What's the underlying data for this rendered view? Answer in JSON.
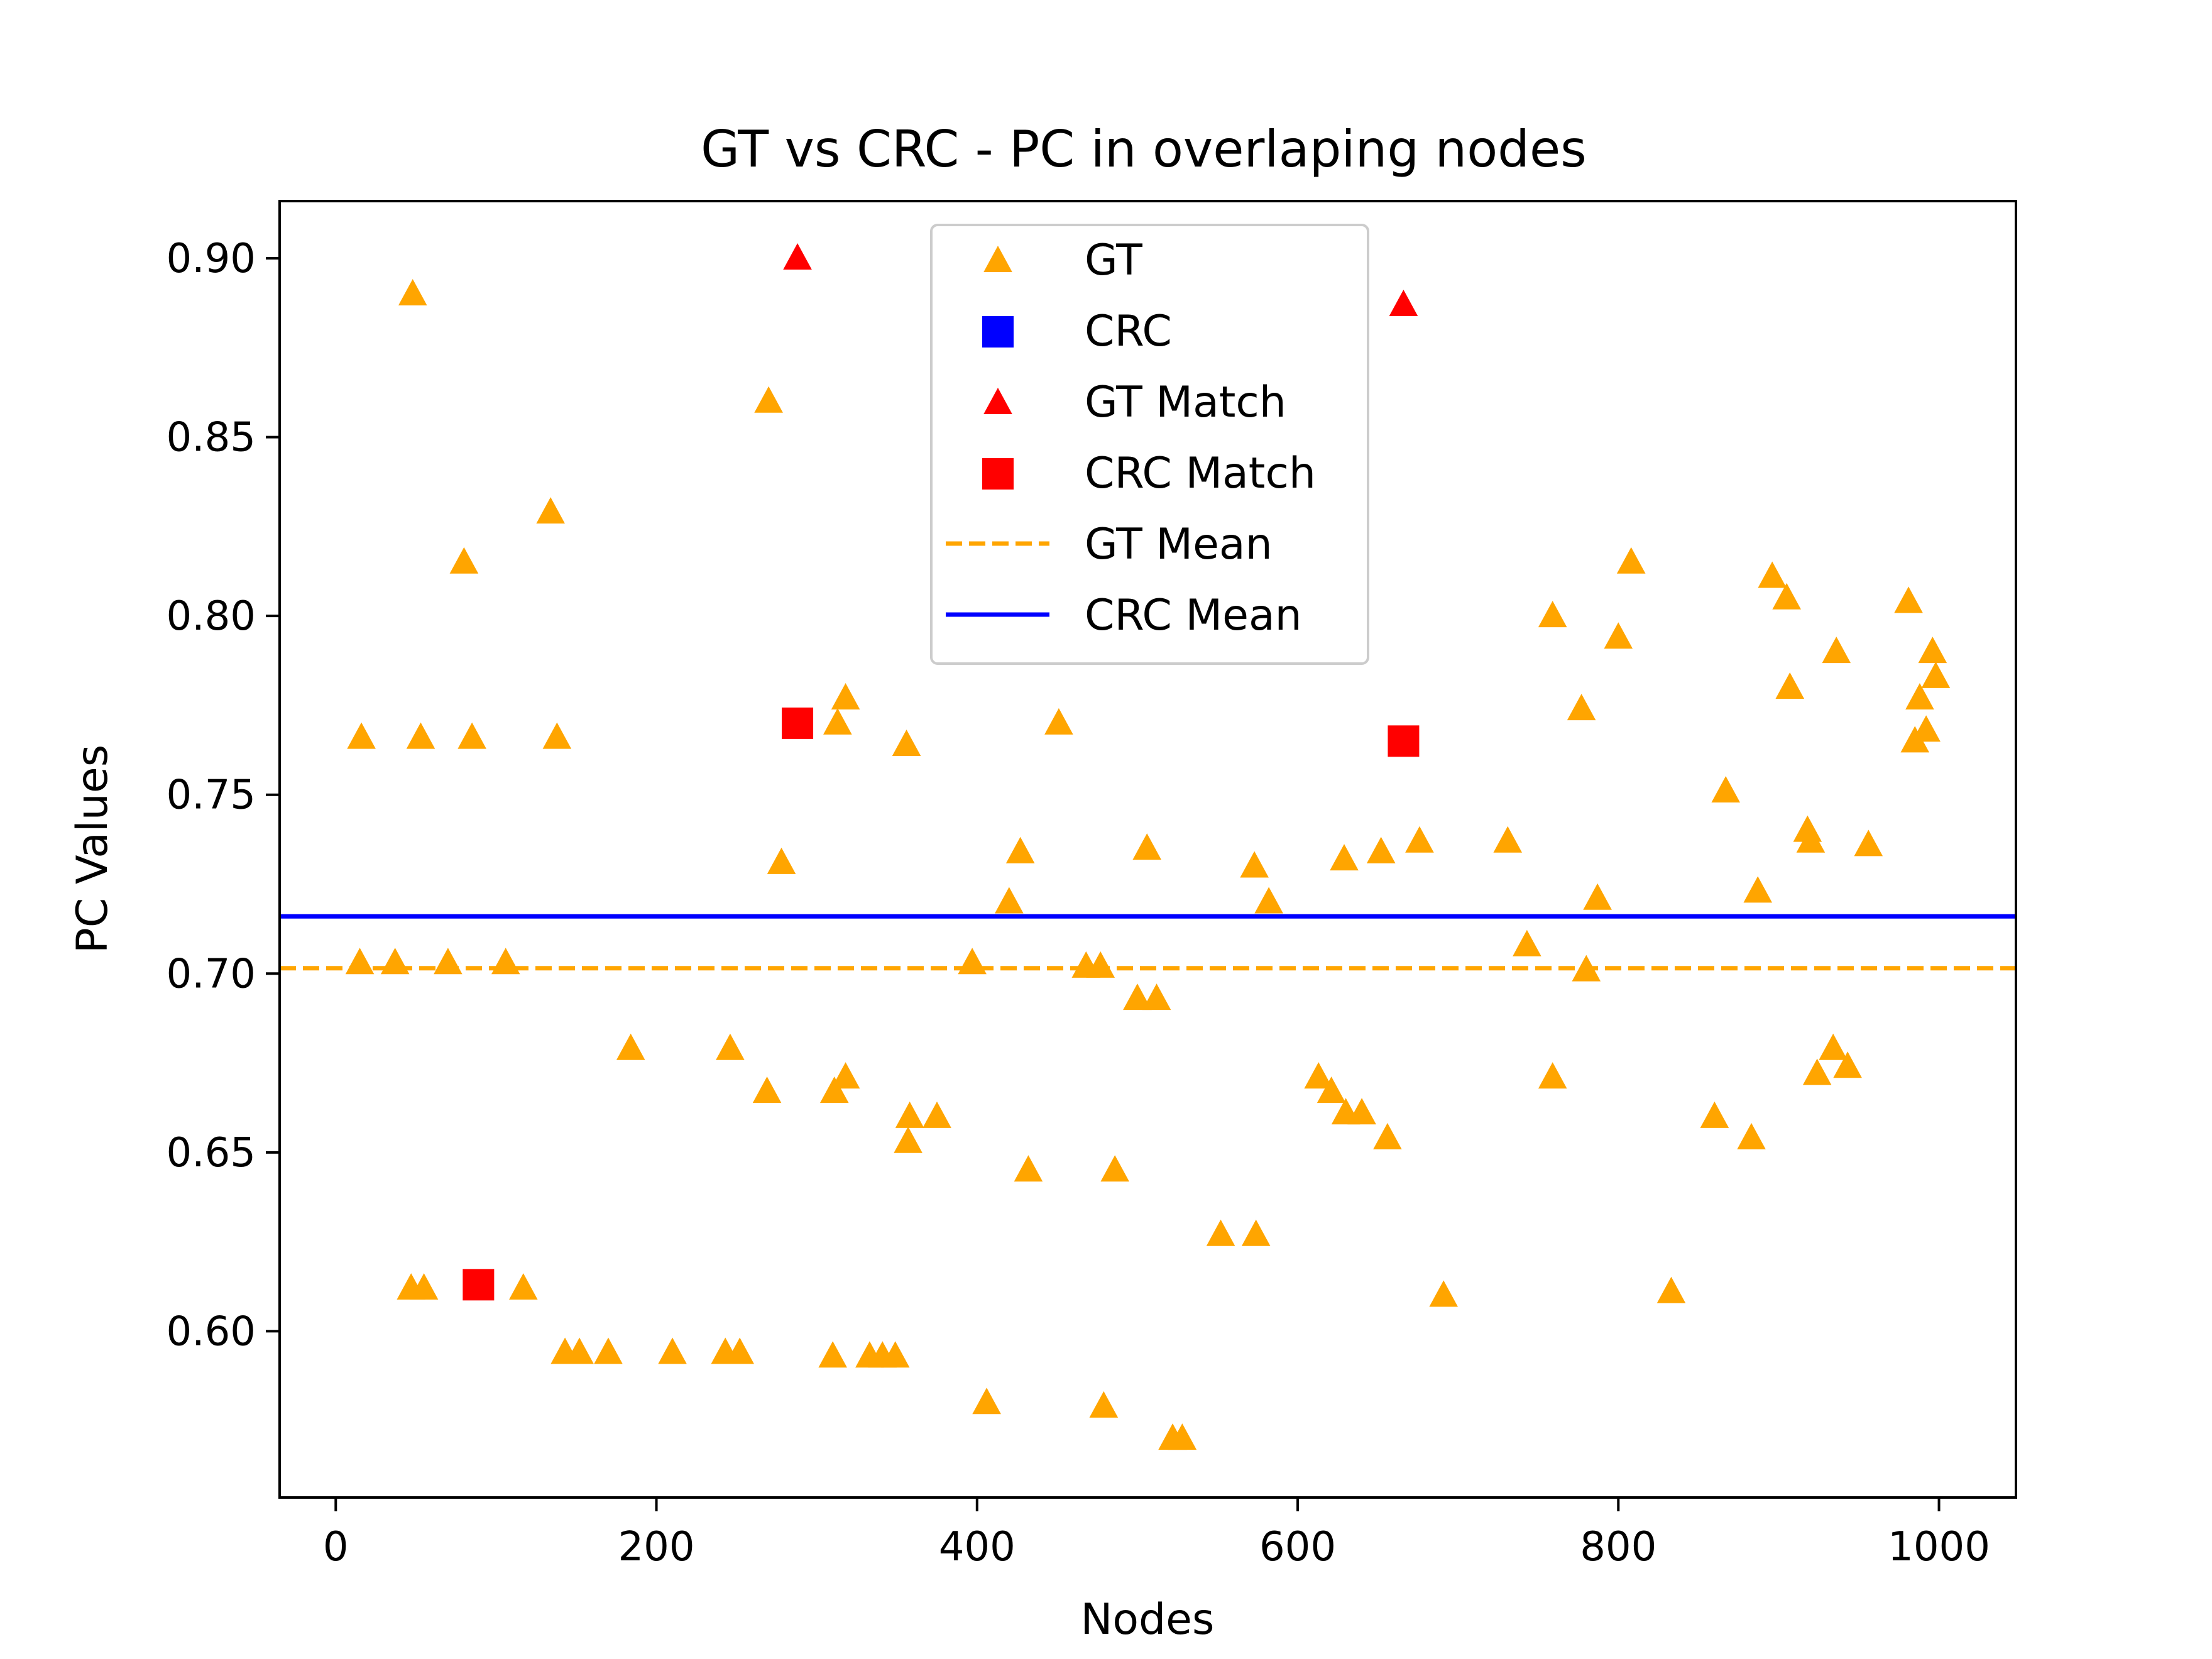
{
  "chart_data": {
    "type": "scatter",
    "title": "GT vs CRC - PC in overlaping nodes",
    "xlabel": "Nodes",
    "ylabel": "PC Values",
    "xlim": [
      -35,
      1048
    ],
    "ylim": [
      0.5535,
      0.916
    ],
    "x_ticks": [
      0,
      200,
      400,
      600,
      800,
      1000
    ],
    "x_tick_labels": [
      "0",
      "200",
      "400",
      "600",
      "800",
      "1000"
    ],
    "y_ticks": [
      0.6,
      0.65,
      0.7,
      0.75,
      0.8,
      0.85,
      0.9
    ],
    "y_tick_labels": [
      "0.60",
      "0.65",
      "0.70",
      "0.75",
      "0.80",
      "0.85",
      "0.90"
    ],
    "grid": false,
    "legend_position": "top-center",
    "series": [
      {
        "name": "GT",
        "marker": "triangle",
        "color": "#FFA500",
        "points": [
          [
            16,
            0.766
          ],
          [
            48,
            0.89
          ],
          [
            53,
            0.766
          ],
          [
            85,
            0.766
          ],
          [
            138,
            0.766
          ],
          [
            80,
            0.815
          ],
          [
            134,
            0.829
          ],
          [
            270,
            0.86
          ],
          [
            15,
            0.703
          ],
          [
            37,
            0.703
          ],
          [
            70,
            0.703
          ],
          [
            106,
            0.703
          ],
          [
            47,
            0.612
          ],
          [
            55,
            0.612
          ],
          [
            117,
            0.612
          ],
          [
            143,
            0.594
          ],
          [
            152,
            0.594
          ],
          [
            170,
            0.594
          ],
          [
            210,
            0.594
          ],
          [
            243,
            0.594
          ],
          [
            252,
            0.594
          ],
          [
            184,
            0.679
          ],
          [
            246,
            0.679
          ],
          [
            269,
            0.667
          ],
          [
            278,
            0.731
          ],
          [
            313,
            0.77
          ],
          [
            318,
            0.777
          ],
          [
            356,
            0.764
          ],
          [
            311,
            0.667
          ],
          [
            318,
            0.671
          ],
          [
            357,
            0.653
          ],
          [
            358,
            0.66
          ],
          [
            375,
            0.66
          ],
          [
            310,
            0.593
          ],
          [
            333,
            0.593
          ],
          [
            341,
            0.593
          ],
          [
            349,
            0.593
          ],
          [
            397,
            0.703
          ],
          [
            406,
            0.58
          ],
          [
            420,
            0.72
          ],
          [
            427,
            0.734
          ],
          [
            432,
            0.645
          ],
          [
            451,
            0.77
          ],
          [
            468,
            0.702
          ],
          [
            477,
            0.702
          ],
          [
            479,
            0.579
          ],
          [
            486,
            0.645
          ],
          [
            500,
            0.693
          ],
          [
            506,
            0.735
          ],
          [
            512,
            0.693
          ],
          [
            522,
            0.57
          ],
          [
            528,
            0.57
          ],
          [
            552,
            0.627
          ],
          [
            573,
            0.73
          ],
          [
            574,
            0.627
          ],
          [
            582,
            0.72
          ],
          [
            613,
            0.671
          ],
          [
            621,
            0.667
          ],
          [
            629,
            0.732
          ],
          [
            630,
            0.661
          ],
          [
            640,
            0.661
          ],
          [
            652,
            0.734
          ],
          [
            656,
            0.654
          ],
          [
            676,
            0.737
          ],
          [
            691,
            0.61
          ],
          [
            731,
            0.737
          ],
          [
            743,
            0.708
          ],
          [
            759,
            0.671
          ],
          [
            759,
            0.8
          ],
          [
            777,
            0.774
          ],
          [
            780,
            0.701
          ],
          [
            787,
            0.721
          ],
          [
            800,
            0.794
          ],
          [
            808,
            0.815
          ],
          [
            833,
            0.611
          ],
          [
            860,
            0.66
          ],
          [
            867,
            0.751
          ],
          [
            883,
            0.654
          ],
          [
            887,
            0.723
          ],
          [
            896,
            0.811
          ],
          [
            905,
            0.805
          ],
          [
            907,
            0.78
          ],
          [
            918,
            0.74
          ],
          [
            920,
            0.737
          ],
          [
            924,
            0.672
          ],
          [
            934,
            0.679
          ],
          [
            936,
            0.79
          ],
          [
            943,
            0.674
          ],
          [
            956,
            0.736
          ],
          [
            981,
            0.804
          ],
          [
            985,
            0.765
          ],
          [
            988,
            0.777
          ],
          [
            992,
            0.768
          ],
          [
            996,
            0.79
          ],
          [
            998,
            0.783
          ]
        ]
      },
      {
        "name": "CRC",
        "marker": "square",
        "color": "#0000FF",
        "points": []
      },
      {
        "name": "GT Match",
        "marker": "triangle",
        "color": "#FF0000",
        "points": [
          [
            288,
            0.9
          ],
          [
            666,
            0.887
          ]
        ]
      },
      {
        "name": "CRC Match",
        "marker": "square",
        "color": "#FF0000",
        "points": [
          [
            89,
            0.613
          ],
          [
            288,
            0.77
          ],
          [
            666,
            0.765
          ]
        ]
      }
    ],
    "reference_lines": [
      {
        "name": "GT Mean",
        "orientation": "horizontal",
        "y": 0.7015,
        "style": "dashed",
        "color": "#FFA500"
      },
      {
        "name": "CRC Mean",
        "orientation": "horizontal",
        "y": 0.716,
        "style": "solid",
        "color": "#0000FF"
      }
    ]
  }
}
